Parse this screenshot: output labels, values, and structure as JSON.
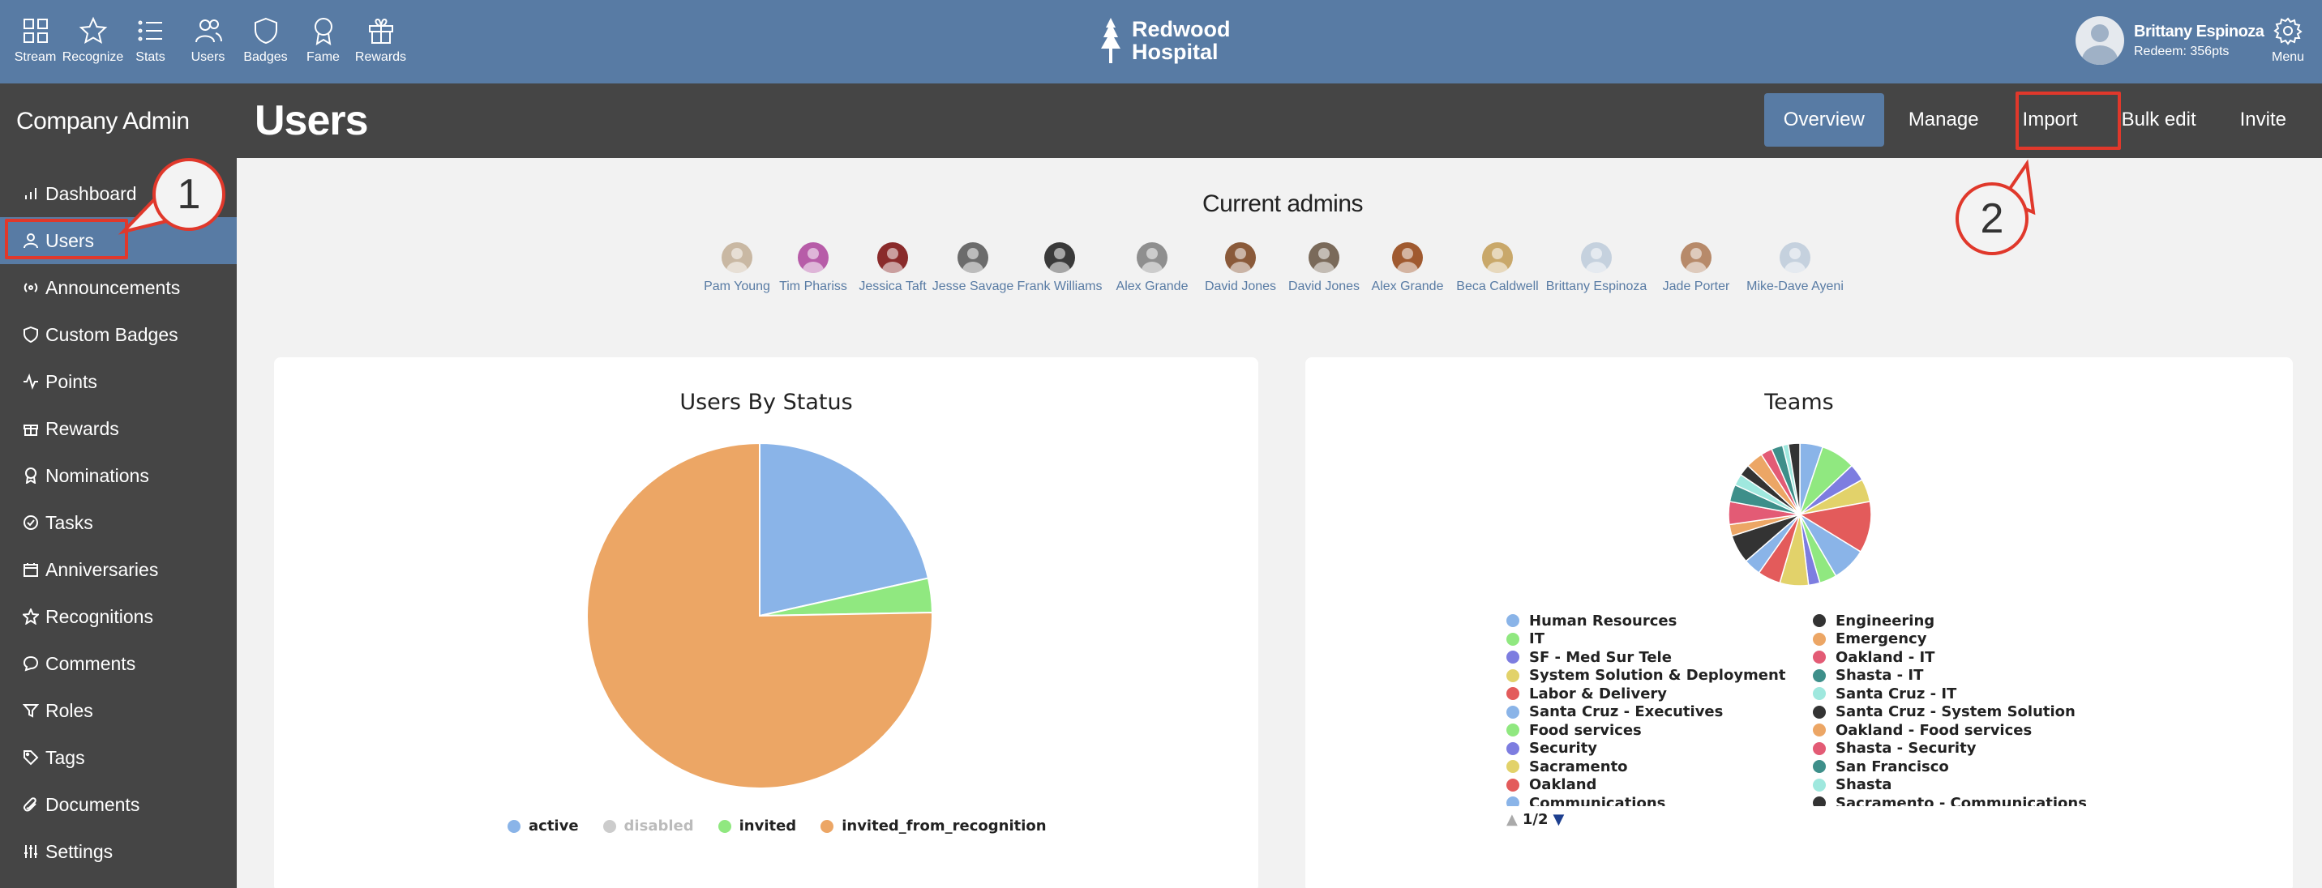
{
  "topnav": {
    "items": [
      {
        "label": "Stream",
        "icon": "grid-icon"
      },
      {
        "label": "Recognize",
        "icon": "star-icon"
      },
      {
        "label": "Stats",
        "icon": "list-icon"
      },
      {
        "label": "Users",
        "icon": "users-icon"
      },
      {
        "label": "Badges",
        "icon": "shield-icon"
      },
      {
        "label": "Fame",
        "icon": "award-icon"
      },
      {
        "label": "Rewards",
        "icon": "gift-icon"
      }
    ],
    "brand_line1": "Redwood",
    "brand_line2": "Hospital",
    "user_name": "Brittany Espinoza",
    "user_points": "Redeem: 356pts",
    "menu_label": "Menu"
  },
  "sidebar": {
    "title": "Company Admin",
    "items": [
      {
        "label": "Dashboard",
        "icon": "bar-chart-icon"
      },
      {
        "label": "Users",
        "icon": "user-icon",
        "active": true
      },
      {
        "label": "Announcements",
        "icon": "broadcast-icon"
      },
      {
        "label": "Custom Badges",
        "icon": "shield-icon"
      },
      {
        "label": "Points",
        "icon": "activity-icon"
      },
      {
        "label": "Rewards",
        "icon": "gift-icon"
      },
      {
        "label": "Nominations",
        "icon": "award-icon"
      },
      {
        "label": "Tasks",
        "icon": "check-circle-icon"
      },
      {
        "label": "Anniversaries",
        "icon": "calendar-icon"
      },
      {
        "label": "Recognitions",
        "icon": "star-icon"
      },
      {
        "label": "Comments",
        "icon": "comment-icon"
      },
      {
        "label": "Roles",
        "icon": "filter-icon"
      },
      {
        "label": "Tags",
        "icon": "tag-icon"
      },
      {
        "label": "Documents",
        "icon": "paperclip-icon"
      },
      {
        "label": "Settings",
        "icon": "sliders-icon"
      }
    ]
  },
  "header": {
    "title": "Users",
    "tabs": [
      {
        "label": "Overview",
        "active": true
      },
      {
        "label": "Manage"
      },
      {
        "label": "Import"
      },
      {
        "label": "Bulk edit"
      },
      {
        "label": "Invite"
      }
    ]
  },
  "admins": {
    "title": "Current admins",
    "people": [
      {
        "name": "Pam Young",
        "color": "#c9b8a3"
      },
      {
        "name": "Tim Phariss",
        "color": "#b75ca8"
      },
      {
        "name": "Jessica Taft",
        "color": "#8a2b2b"
      },
      {
        "name": "Jesse Savage",
        "color": "#6c6c6c"
      },
      {
        "name": "Frank Williams",
        "color": "#3a3a3a"
      },
      {
        "name": "Alex Grande",
        "color": "#8f8f8f"
      },
      {
        "name": "David Jones",
        "color": "#8a5a3a"
      },
      {
        "name": "David Jones",
        "color": "#7a6a5a"
      },
      {
        "name": "Alex Grande",
        "color": "#a05a30"
      },
      {
        "name": "Beca Caldwell",
        "color": "#c9a86a"
      },
      {
        "name": "Brittany Espinoza",
        "color": "#c5d1de"
      },
      {
        "name": "Jade Porter",
        "color": "#b78a6a"
      },
      {
        "name": "Mike-Dave Ayeni",
        "color": "#c5d1de"
      }
    ]
  },
  "callouts": {
    "one": "1",
    "two": "2"
  },
  "chart_data": [
    {
      "type": "pie",
      "title": "Users By Status",
      "categories": [
        "active",
        "disabled",
        "invited",
        "invited_from_recognition"
      ],
      "values": [
        21.5,
        0,
        3.2,
        75.3
      ],
      "colors": [
        "#8ab4e8",
        "#cccccc",
        "#90e880",
        "#eca665"
      ],
      "legend": "bottom"
    },
    {
      "type": "pie",
      "title": "Teams",
      "legend": "bottom",
      "legend_page": "1/2",
      "categories": [
        "Human Resources",
        "IT",
        "SF - Med Sur Tele",
        "System Solution & Deployment",
        "Labor & Delivery",
        "Santa Cruz - Executives",
        "Food services",
        "Security",
        "Sacramento",
        "Oakland",
        "Communications",
        "Engineering",
        "Emergency",
        "Oakland - IT",
        "Shasta - IT",
        "Santa Cruz - IT",
        "Santa Cruz - System Solution",
        "Oakland - Food services",
        "Shasta - Security",
        "San Francisco",
        "Shasta",
        "Sacramento - Communications"
      ],
      "values": [
        4,
        6,
        3,
        4,
        9,
        6,
        3,
        2,
        5,
        4,
        3,
        5,
        2,
        4,
        3,
        2,
        2,
        3,
        2,
        2,
        1,
        2
      ],
      "colors": [
        "#8ab4e8",
        "#90e880",
        "#7d7de0",
        "#e2d26a",
        "#e35b5b",
        "#8ab4e8",
        "#90e880",
        "#7d7de0",
        "#e2d26a",
        "#e35b5b",
        "#8ab4e8",
        "#333333",
        "#eca665",
        "#e35b75",
        "#3e8f8a",
        "#9fe8de",
        "#333333",
        "#eca665",
        "#e35b75",
        "#3e8f8a",
        "#9fe8de",
        "#333333"
      ]
    }
  ]
}
